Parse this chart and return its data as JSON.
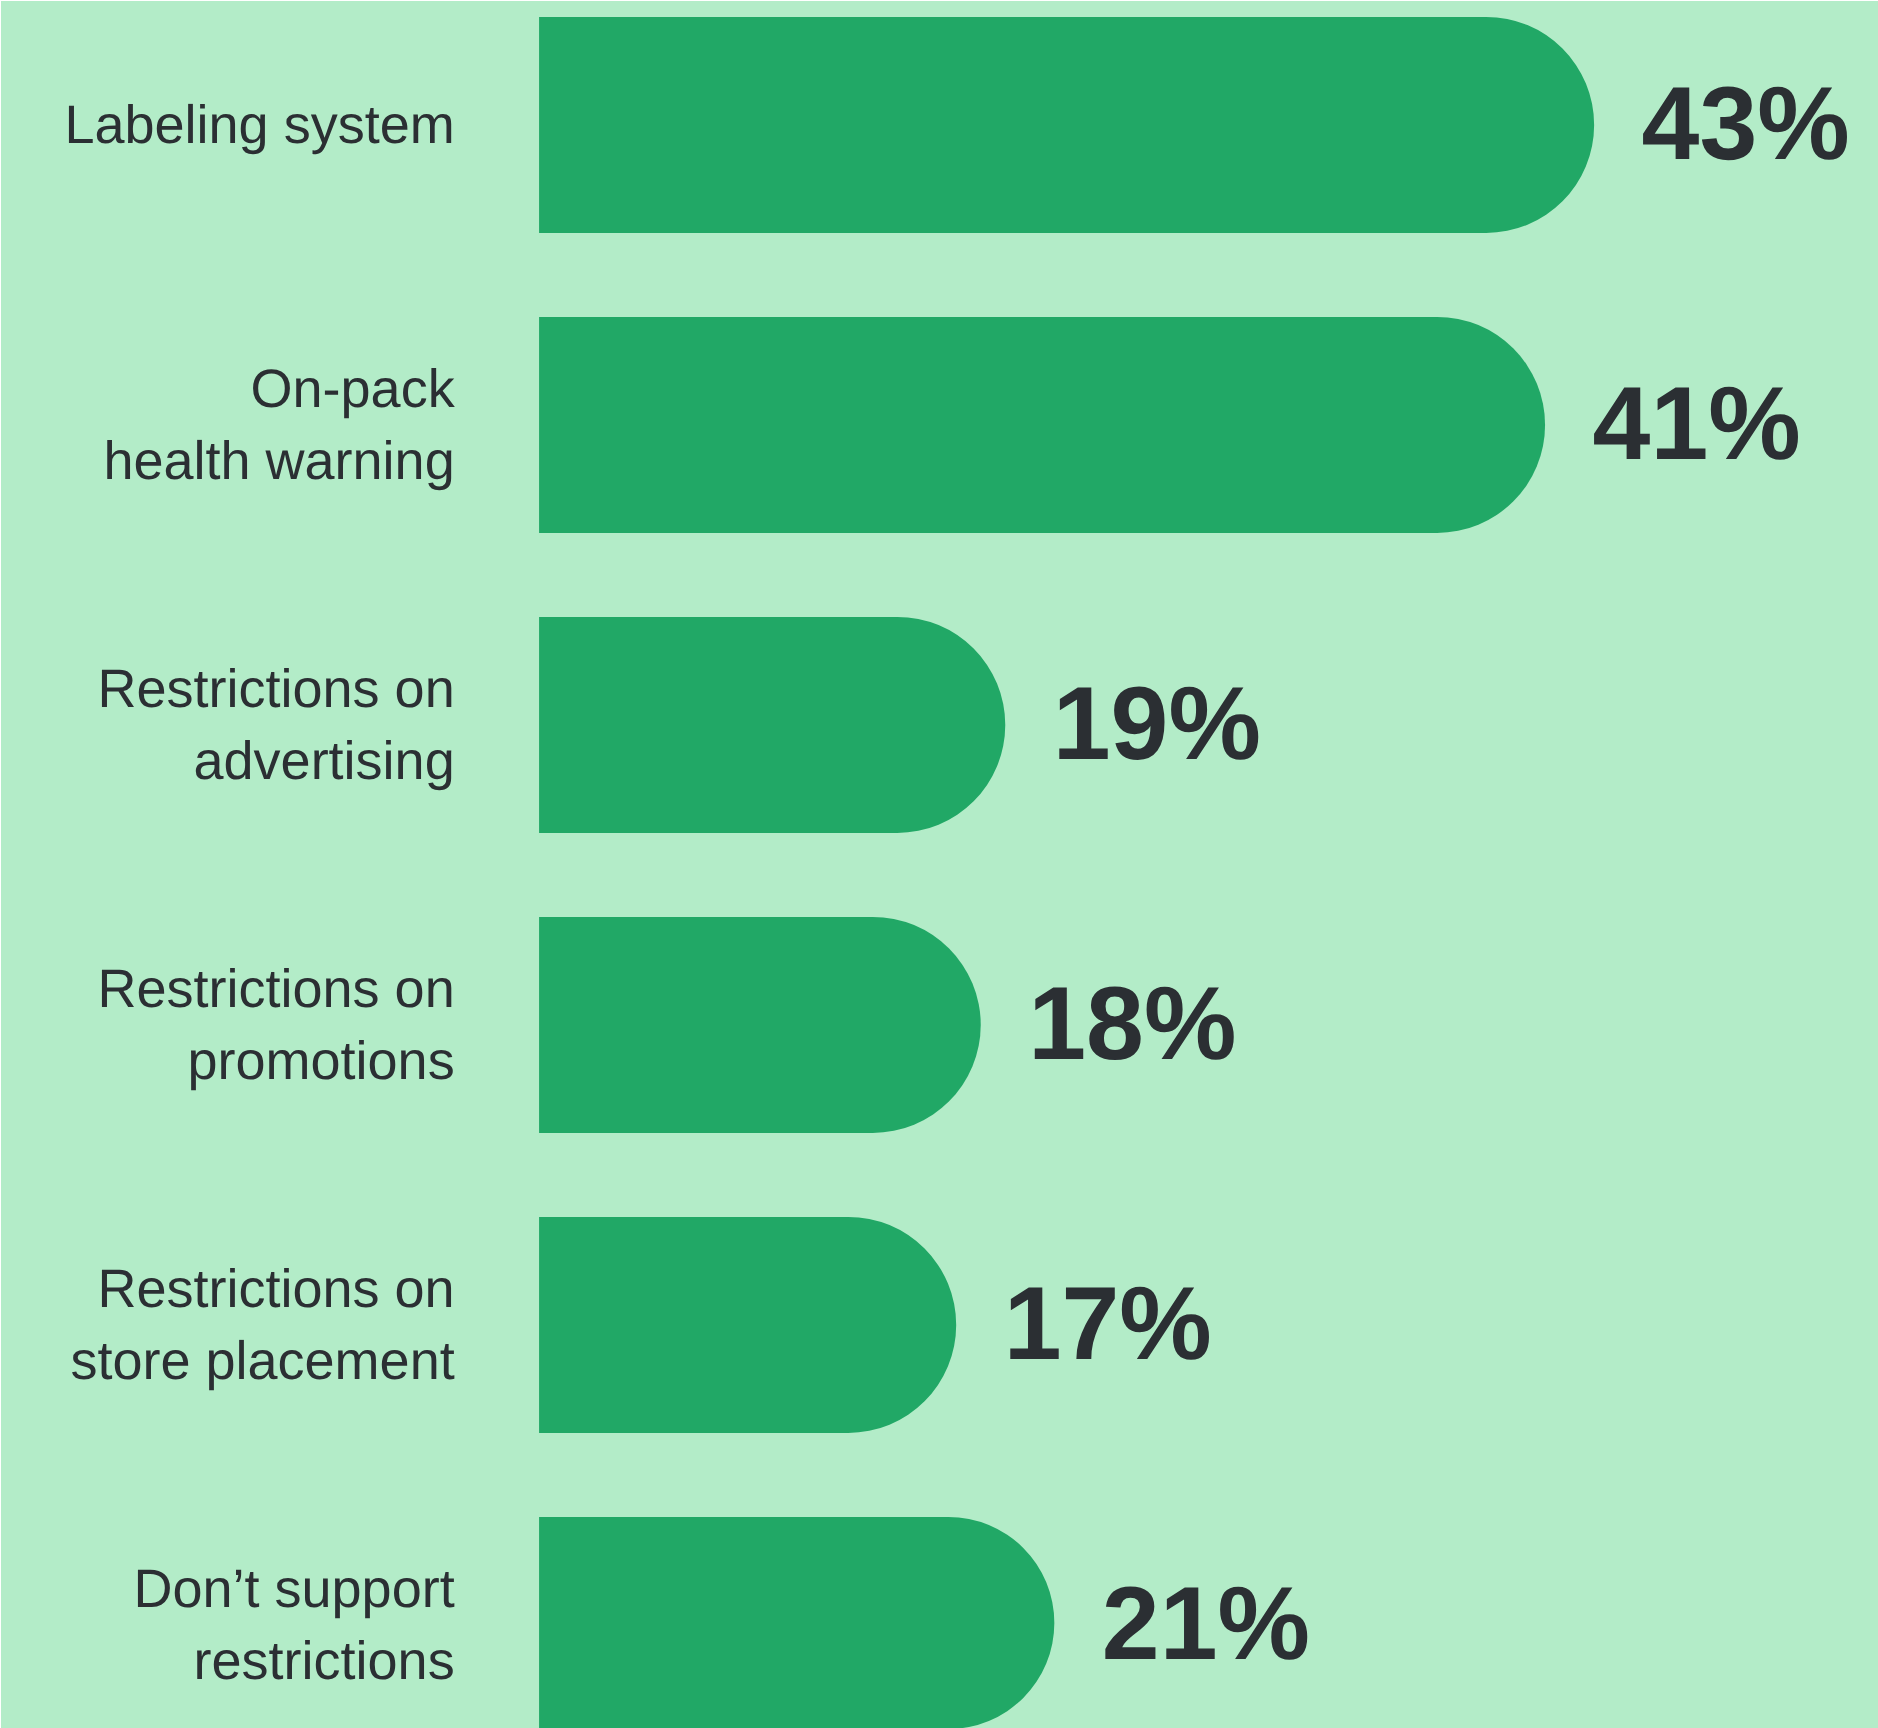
{
  "chart_data": {
    "type": "bar",
    "orientation": "horizontal",
    "categories": [
      "Labeling system",
      "On-pack\nhealth warning",
      "Restrictions on\nadvertising",
      "Restrictions on\npromotions",
      "Restrictions on\nstore placement",
      "Don’t support\nrestrictions"
    ],
    "values": [
      43,
      41,
      19,
      18,
      17,
      21
    ],
    "color": "#21a866",
    "data_labels": true,
    "value_labels": [
      "43%",
      "41%",
      "19%",
      "18%",
      "17%",
      "21%"
    ],
    "grid": false
  }
}
